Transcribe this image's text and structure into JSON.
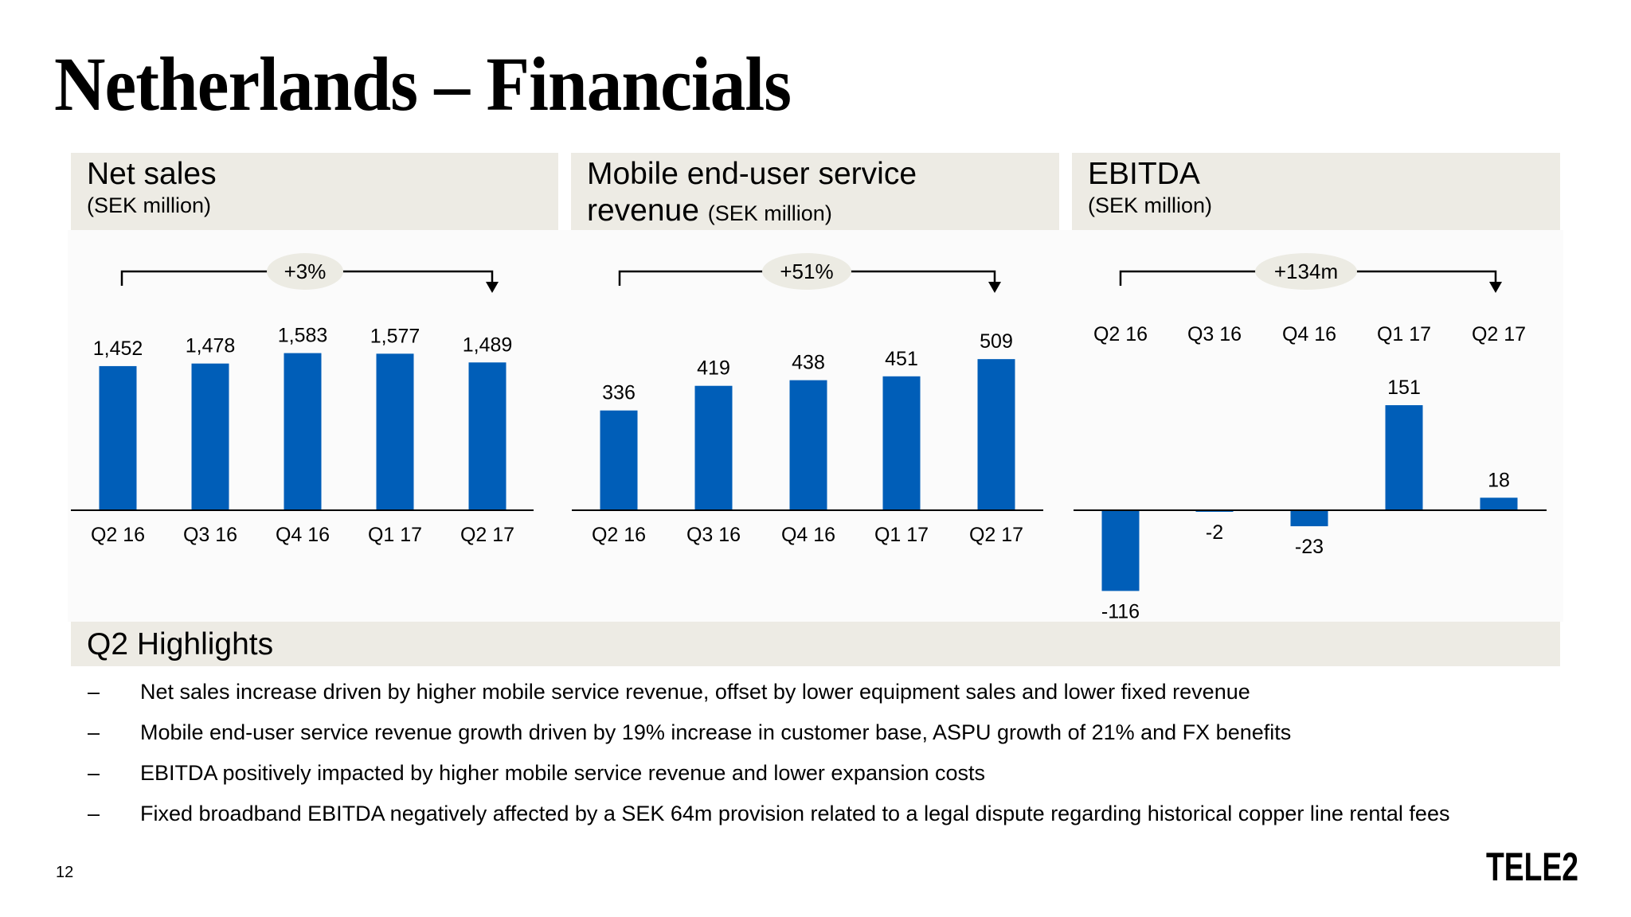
{
  "title": "Netherlands – Financials",
  "panels": [
    {
      "title": "Net sales",
      "subtitle": "(SEK million)"
    },
    {
      "title_line1": "Mobile end-user service",
      "title_line2": "revenue",
      "subtitle": "(SEK million)"
    },
    {
      "title": "EBITDA",
      "subtitle": "(SEK million)"
    }
  ],
  "colors": {
    "bar": "#005EB8",
    "panel_header_bg": "#EDEBE4",
    "growth_pill_bg": "#ECEBE3"
  },
  "chart_data": [
    {
      "type": "bar",
      "title": "Net sales",
      "ylabel": "(SEK million)",
      "categories": [
        "Q2 16",
        "Q3 16",
        "Q4 16",
        "Q1 17",
        "Q2 17"
      ],
      "values": [
        1452,
        1478,
        1583,
        1577,
        1489
      ],
      "value_labels": [
        "1,452",
        "1,478",
        "1,583",
        "1,577",
        "1,489"
      ],
      "growth_label": "+3%",
      "grid": false
    },
    {
      "type": "bar",
      "title": "Mobile end-user service revenue",
      "ylabel": "(SEK million)",
      "categories": [
        "Q2 16",
        "Q3 16",
        "Q4 16",
        "Q1 17",
        "Q2 17"
      ],
      "values": [
        336,
        419,
        438,
        451,
        509
      ],
      "value_labels": [
        "336",
        "419",
        "438",
        "451",
        "509"
      ],
      "growth_label": "+51%",
      "grid": false
    },
    {
      "type": "bar",
      "title": "EBITDA",
      "ylabel": "(SEK million)",
      "categories": [
        "Q2 16",
        "Q3 16",
        "Q4 16",
        "Q1 17",
        "Q2 17"
      ],
      "values": [
        -116,
        -2,
        -23,
        151,
        18
      ],
      "value_labels": [
        "-116",
        "-2",
        "-23",
        "151",
        "18"
      ],
      "growth_label": "+134m",
      "grid": false
    }
  ],
  "highlights": {
    "title": "Q2 Highlights",
    "dash": "–",
    "items": [
      "Net sales increase driven by higher mobile service revenue, offset by lower equipment sales and lower fixed revenue",
      "Mobile end-user service revenue growth driven by 19% increase in customer base, ASPU growth of 21% and FX benefits",
      "EBITDA positively impacted by higher mobile service revenue and lower expansion costs",
      "Fixed broadband EBITDA negatively affected by a SEK 64m provision related to a legal dispute regarding historical copper line rental fees"
    ]
  },
  "page_number": "12",
  "logo": "TELE2"
}
